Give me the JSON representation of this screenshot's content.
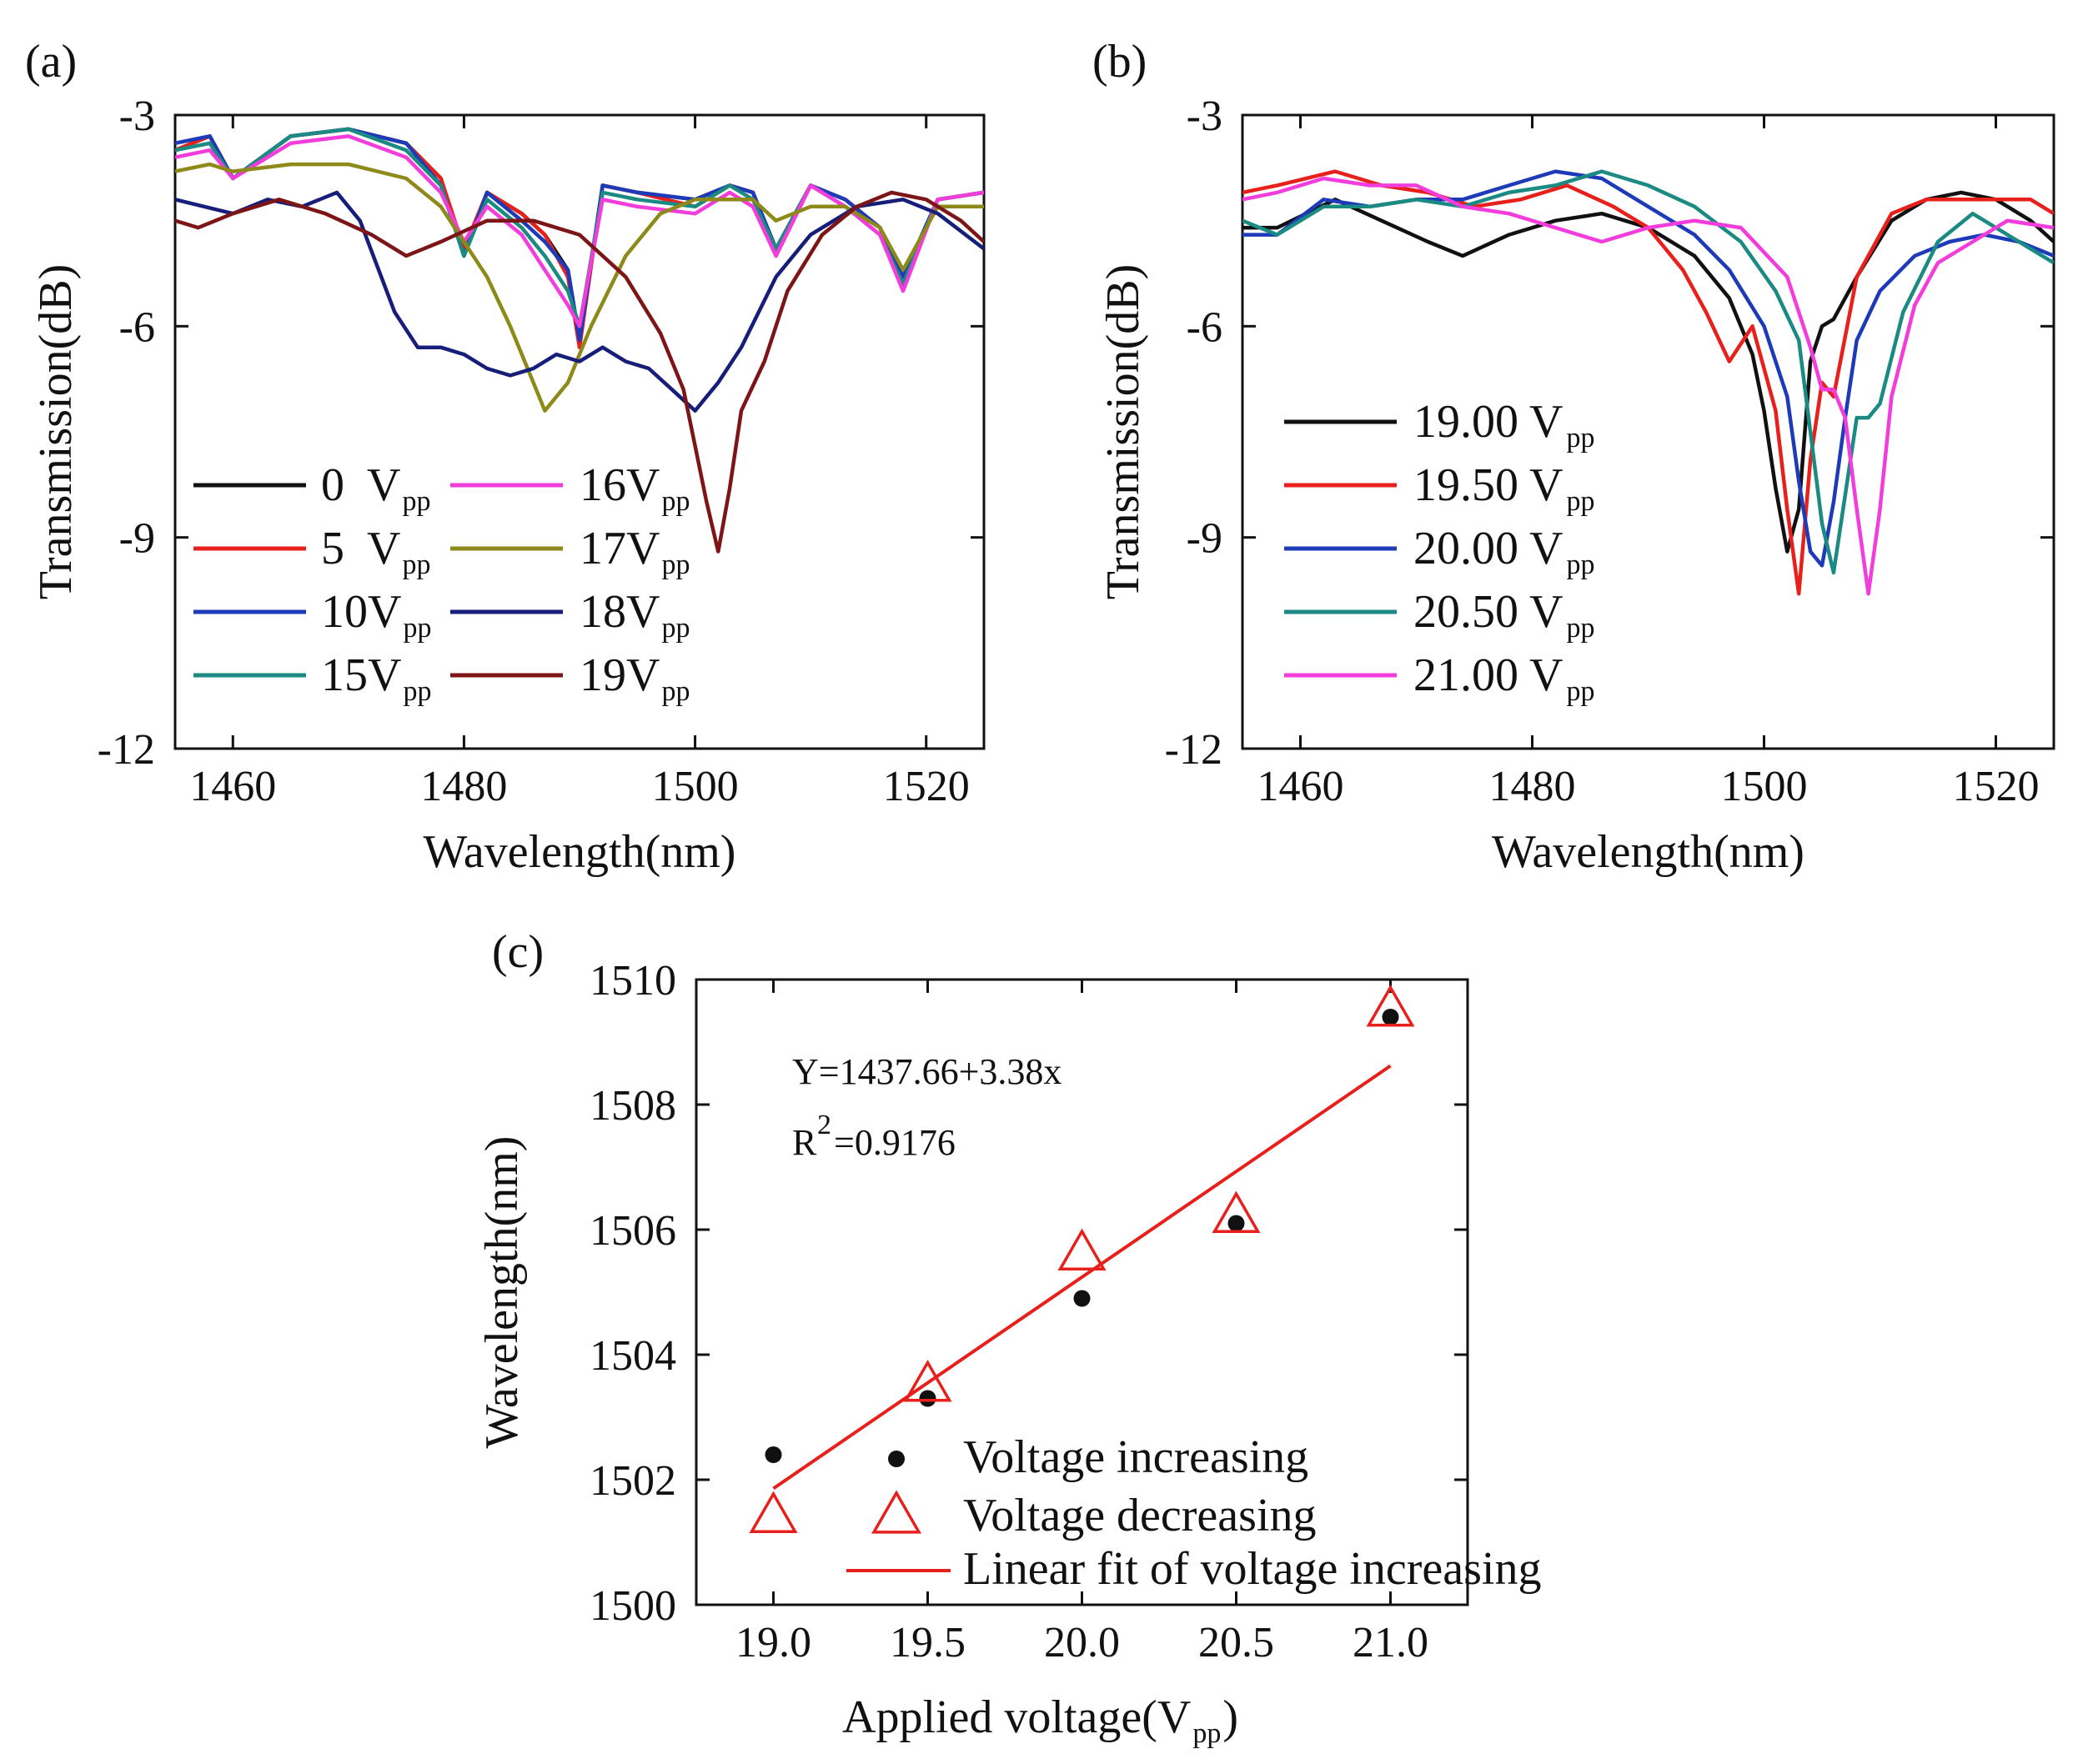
{
  "chart_data": [
    {
      "panel": "(a)",
      "type": "line",
      "xlabel": "Wavelength(nm)",
      "ylabel": "Transmission(dB)",
      "xlim": [
        1455,
        1525
      ],
      "ylim": [
        -12,
        -3
      ],
      "xticks": [
        "1460",
        "1480",
        "1500",
        "1520"
      ],
      "yticks": [
        "-3",
        "-6",
        "-9",
        "-12"
      ],
      "legend_placement": "lower-left",
      "series": [
        {
          "name": "0  V",
          "sub": "pp",
          "color": "#111111",
          "x": [
            1455,
            1458,
            1460,
            1465,
            1470,
            1475,
            1478,
            1480,
            1482,
            1485,
            1487,
            1489,
            1490,
            1492,
            1495,
            1500,
            1503,
            1505,
            1507,
            1510,
            1513,
            1516,
            1518,
            1521,
            1525
          ],
          "y": [
            -3.5,
            -3.3,
            -3.9,
            -3.3,
            -3.2,
            -3.4,
            -3.9,
            -5.0,
            -4.1,
            -4.4,
            -4.7,
            -5.2,
            -6.2,
            -4.0,
            -4.1,
            -4.2,
            -4.0,
            -4.1,
            -4.9,
            -4.0,
            -4.2,
            -4.6,
            -5.3,
            -4.2,
            -4.1
          ]
        },
        {
          "name": "5  V",
          "sub": "pp",
          "color": "#e8201c",
          "x": [
            1455,
            1458,
            1460,
            1465,
            1470,
            1475,
            1478,
            1480,
            1482,
            1485,
            1487,
            1489,
            1490,
            1492,
            1495,
            1500,
            1503,
            1505,
            1507,
            1510,
            1513,
            1516,
            1518,
            1521,
            1525
          ],
          "y": [
            -3.5,
            -3.3,
            -3.9,
            -3.3,
            -3.2,
            -3.4,
            -3.9,
            -4.9,
            -4.1,
            -4.4,
            -4.7,
            -5.3,
            -6.3,
            -4.0,
            -4.1,
            -4.3,
            -4.0,
            -4.1,
            -5.0,
            -4.0,
            -4.2,
            -4.6,
            -5.4,
            -4.2,
            -4.1
          ]
        },
        {
          "name": "10V",
          "sub": "pp",
          "color": "#1d3bb8",
          "x": [
            1455,
            1458,
            1460,
            1465,
            1470,
            1475,
            1478,
            1480,
            1482,
            1485,
            1487,
            1489,
            1490,
            1492,
            1495,
            1500,
            1503,
            1505,
            1507,
            1510,
            1513,
            1516,
            1518,
            1521,
            1525
          ],
          "y": [
            -3.4,
            -3.3,
            -3.9,
            -3.3,
            -3.2,
            -3.4,
            -4.0,
            -5.0,
            -4.1,
            -4.5,
            -4.8,
            -5.2,
            -6.2,
            -4.0,
            -4.1,
            -4.2,
            -4.0,
            -4.1,
            -4.9,
            -4.0,
            -4.2,
            -4.6,
            -5.3,
            -4.2,
            -4.1
          ]
        },
        {
          "name": "15V",
          "sub": "pp",
          "color": "#1a8a83",
          "x": [
            1455,
            1458,
            1460,
            1465,
            1470,
            1475,
            1478,
            1480,
            1482,
            1485,
            1487,
            1489,
            1490,
            1492,
            1495,
            1500,
            1503,
            1505,
            1507,
            1510,
            1513,
            1516,
            1518,
            1521,
            1525
          ],
          "y": [
            -3.5,
            -3.4,
            -3.9,
            -3.3,
            -3.2,
            -3.5,
            -4.0,
            -5.0,
            -4.2,
            -4.6,
            -5.0,
            -5.5,
            -6.0,
            -4.1,
            -4.2,
            -4.3,
            -4.0,
            -4.2,
            -4.9,
            -4.0,
            -4.3,
            -4.7,
            -5.4,
            -4.2,
            -4.1
          ]
        },
        {
          "name": "16V",
          "sub": "pp",
          "color": "#f23ddc",
          "x": [
            1455,
            1458,
            1460,
            1465,
            1470,
            1475,
            1478,
            1480,
            1482,
            1485,
            1487,
            1489,
            1490,
            1492,
            1495,
            1500,
            1503,
            1505,
            1507,
            1510,
            1513,
            1516,
            1518,
            1521,
            1525
          ],
          "y": [
            -3.6,
            -3.5,
            -3.9,
            -3.4,
            -3.3,
            -3.6,
            -4.1,
            -4.8,
            -4.3,
            -4.7,
            -5.2,
            -5.7,
            -6.0,
            -4.2,
            -4.3,
            -4.4,
            -4.1,
            -4.3,
            -5.0,
            -4.0,
            -4.3,
            -4.7,
            -5.5,
            -4.2,
            -4.1
          ]
        },
        {
          "name": "17V",
          "sub": "pp",
          "color": "#8e8a1a",
          "x": [
            1455,
            1458,
            1460,
            1465,
            1470,
            1475,
            1478,
            1480,
            1482,
            1484,
            1486,
            1487,
            1489,
            1491,
            1494,
            1497,
            1500,
            1503,
            1505,
            1507,
            1510,
            1513,
            1516,
            1518,
            1521,
            1525
          ],
          "y": [
            -3.8,
            -3.7,
            -3.8,
            -3.7,
            -3.7,
            -3.9,
            -4.3,
            -4.8,
            -5.3,
            -6.0,
            -6.8,
            -7.2,
            -6.8,
            -6.0,
            -5.0,
            -4.4,
            -4.2,
            -4.2,
            -4.2,
            -4.5,
            -4.3,
            -4.3,
            -4.6,
            -5.2,
            -4.3,
            -4.3
          ]
        },
        {
          "name": "18V",
          "sub": "pp",
          "color": "#161e7a",
          "x": [
            1455,
            1460,
            1463,
            1466,
            1469,
            1471,
            1474,
            1476,
            1478,
            1480,
            1482,
            1484,
            1486,
            1488,
            1490,
            1492,
            1494,
            1496,
            1498,
            1500,
            1501,
            1502,
            1504,
            1507,
            1510,
            1514,
            1518,
            1521,
            1525
          ],
          "y": [
            -4.2,
            -4.4,
            -4.2,
            -4.3,
            -4.1,
            -4.5,
            -5.8,
            -6.3,
            -6.3,
            -6.4,
            -6.6,
            -6.7,
            -6.6,
            -6.4,
            -6.5,
            -6.3,
            -6.5,
            -6.6,
            -6.9,
            -7.2,
            -7.0,
            -6.8,
            -6.3,
            -5.3,
            -4.7,
            -4.3,
            -4.2,
            -4.4,
            -4.9
          ]
        },
        {
          "name": "19V",
          "sub": "pp",
          "color": "#7d1416",
          "x": [
            1455,
            1457,
            1460,
            1464,
            1468,
            1472,
            1475,
            1478,
            1482,
            1486,
            1490,
            1494,
            1497,
            1499,
            1500,
            1501,
            1502,
            1503,
            1504,
            1506,
            1508,
            1511,
            1514,
            1517,
            1520,
            1523,
            1525
          ],
          "y": [
            -4.5,
            -4.6,
            -4.4,
            -4.2,
            -4.4,
            -4.7,
            -5.0,
            -4.8,
            -4.5,
            -4.5,
            -4.7,
            -5.3,
            -6.1,
            -6.9,
            -7.7,
            -8.5,
            -9.2,
            -8.3,
            -7.2,
            -6.5,
            -5.5,
            -4.7,
            -4.3,
            -4.1,
            -4.2,
            -4.5,
            -4.8
          ]
        }
      ]
    },
    {
      "panel": "(b)",
      "type": "line",
      "xlabel": "Wavelength(nm)",
      "ylabel": "Transmission(dB)",
      "xlim": [
        1455,
        1525
      ],
      "ylim": [
        -12,
        -3
      ],
      "xticks": [
        "1460",
        "1480",
        "1500",
        "1520"
      ],
      "yticks": [
        "-3",
        "-6",
        "-9",
        "-12"
      ],
      "legend_placement": "lower-left",
      "series": [
        {
          "name": "19.00 V",
          "sub": "pp",
          "color": "#111111",
          "x": [
            1455,
            1458,
            1463,
            1467,
            1471,
            1474,
            1478,
            1482,
            1486,
            1490,
            1494,
            1497,
            1499,
            1500,
            1501,
            1502,
            1503,
            1504,
            1505,
            1506,
            1508,
            1511,
            1514,
            1517,
            1520,
            1523,
            1525
          ],
          "y": [
            -4.6,
            -4.6,
            -4.2,
            -4.5,
            -4.8,
            -5.0,
            -4.7,
            -4.5,
            -4.4,
            -4.6,
            -5.0,
            -5.6,
            -6.4,
            -7.2,
            -8.3,
            -9.2,
            -8.6,
            -6.5,
            -6.0,
            -5.9,
            -5.3,
            -4.5,
            -4.2,
            -4.1,
            -4.2,
            -4.5,
            -4.8
          ]
        },
        {
          "name": "19.50 V",
          "sub": "pp",
          "color": "#e8201c",
          "x": [
            1455,
            1458,
            1463,
            1467,
            1471,
            1475,
            1479,
            1483,
            1487,
            1490,
            1493,
            1495,
            1497,
            1499,
            1501,
            1502,
            1503,
            1504,
            1505,
            1506,
            1508,
            1511,
            1514,
            1517,
            1520,
            1523,
            1525
          ],
          "y": [
            -4.1,
            -4.0,
            -3.8,
            -4.0,
            -4.1,
            -4.3,
            -4.2,
            -4.0,
            -4.3,
            -4.6,
            -5.2,
            -5.8,
            -6.5,
            -6.0,
            -7.2,
            -8.6,
            -9.8,
            -7.9,
            -6.8,
            -7.0,
            -5.3,
            -4.4,
            -4.2,
            -4.2,
            -4.2,
            -4.2,
            -4.4
          ]
        },
        {
          "name": "20.00 V",
          "sub": "pp",
          "color": "#1d3bb8",
          "x": [
            1455,
            1458,
            1462,
            1466,
            1470,
            1474,
            1478,
            1482,
            1486,
            1490,
            1494,
            1497,
            1500,
            1502,
            1503,
            1504,
            1505,
            1506,
            1507,
            1508,
            1510,
            1513,
            1516,
            1519,
            1522,
            1525
          ],
          "y": [
            -4.7,
            -4.7,
            -4.2,
            -4.3,
            -4.2,
            -4.2,
            -4.0,
            -3.8,
            -3.9,
            -4.3,
            -4.7,
            -5.2,
            -6.0,
            -7.0,
            -8.2,
            -9.2,
            -9.4,
            -8.5,
            -7.3,
            -6.2,
            -5.5,
            -5.0,
            -4.8,
            -4.7,
            -4.8,
            -5.0
          ]
        },
        {
          "name": "20.50 V",
          "sub": "pp",
          "color": "#1a8a83",
          "x": [
            1455,
            1458,
            1462,
            1466,
            1470,
            1474,
            1478,
            1482,
            1486,
            1490,
            1494,
            1498,
            1501,
            1503,
            1504,
            1505,
            1506,
            1507,
            1508,
            1509,
            1510,
            1512,
            1515,
            1518,
            1521,
            1525
          ],
          "y": [
            -4.5,
            -4.7,
            -4.3,
            -4.3,
            -4.2,
            -4.3,
            -4.1,
            -4.0,
            -3.8,
            -4.0,
            -4.3,
            -4.8,
            -5.5,
            -6.2,
            -7.5,
            -8.8,
            -9.5,
            -8.4,
            -7.3,
            -7.3,
            -7.1,
            -5.8,
            -4.8,
            -4.4,
            -4.7,
            -5.1
          ]
        },
        {
          "name": "21.00 V",
          "sub": "pp",
          "color": "#f23ddc",
          "x": [
            1455,
            1458,
            1462,
            1466,
            1470,
            1474,
            1478,
            1482,
            1486,
            1490,
            1494,
            1498,
            1502,
            1504,
            1505,
            1506,
            1507,
            1508,
            1509,
            1510,
            1511,
            1513,
            1515,
            1518,
            1521,
            1525
          ],
          "y": [
            -4.2,
            -4.1,
            -3.9,
            -4.0,
            -4.0,
            -4.3,
            -4.4,
            -4.6,
            -4.8,
            -4.6,
            -4.5,
            -4.6,
            -5.3,
            -6.3,
            -6.9,
            -6.9,
            -7.3,
            -8.6,
            -9.8,
            -8.6,
            -7.0,
            -5.7,
            -5.1,
            -4.8,
            -4.5,
            -4.6
          ]
        }
      ]
    },
    {
      "panel": "(c)",
      "type": "scatter",
      "xlabel": "Applied voltage(V",
      "xlabel_sub": "pp",
      "xlabel_close": ")",
      "ylabel": "Wavelength(nm)",
      "xlim": [
        18.75,
        21.25
      ],
      "ylim": [
        1500,
        1510
      ],
      "xticks": [
        "19.0",
        "19.5",
        "20.0",
        "20.5",
        "21.0"
      ],
      "yticks": [
        "1500",
        "1502",
        "1504",
        "1506",
        "1508",
        "1510"
      ],
      "legend_placement": "bottom-right",
      "equation": "Y=1437.66+3.38x",
      "r2_prefix": "R",
      "r2_sup": "2",
      "r2_value": "=0.9176",
      "series": [
        {
          "name": "Voltage increasing",
          "marker": "dot",
          "color": "#111111",
          "x": [
            19.0,
            19.5,
            20.0,
            20.5,
            21.0
          ],
          "y": [
            1502.4,
            1503.3,
            1504.9,
            1506.1,
            1509.4
          ]
        },
        {
          "name": "Voltage decreasing",
          "marker": "triangle",
          "color": "#e8201c",
          "x": [
            19.0,
            19.5,
            20.0,
            20.5,
            21.0
          ],
          "y": [
            1501.4,
            1503.5,
            1505.6,
            1506.2,
            1509.5
          ]
        },
        {
          "name": "Linear fit of voltage increasing",
          "marker": "line",
          "color": "#e8201c",
          "x": [
            19.0,
            21.0
          ],
          "y": [
            1501.86,
            1508.62
          ]
        }
      ]
    }
  ]
}
